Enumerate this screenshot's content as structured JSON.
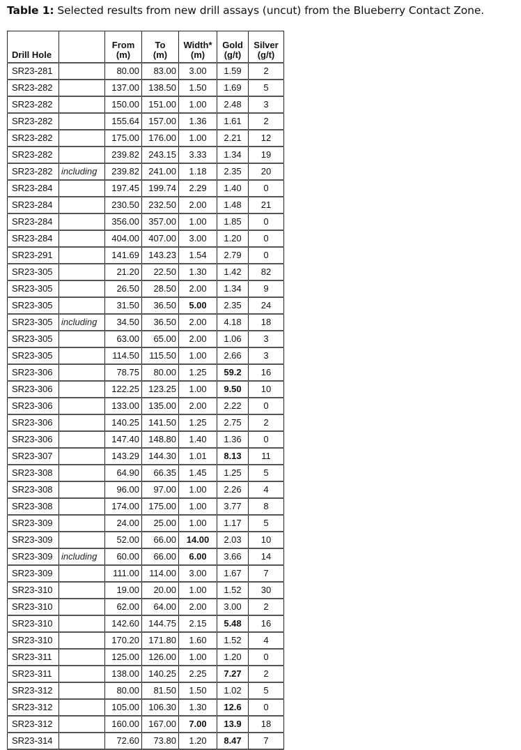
{
  "title": {
    "label": "Table 1:",
    "text": " Selected results from new drill assays (uncut) from the Blueberry Contact Zone."
  },
  "table": {
    "headers": {
      "hole": "Drill Hole",
      "inc": "",
      "from": [
        "From",
        "(m)"
      ],
      "to": [
        "To",
        "(m)"
      ],
      "width": [
        "Width*",
        "(m)"
      ],
      "gold": [
        "Gold",
        "(g/t)"
      ],
      "silver": [
        "Silver",
        "(g/t)"
      ]
    },
    "rows": [
      {
        "hole": "SR23-281",
        "inc": "",
        "from": "80.00",
        "to": "83.00",
        "width": "3.00",
        "gold": "1.59",
        "silver": "2",
        "bold": []
      },
      {
        "hole": "SR23-282",
        "inc": "",
        "from": "137.00",
        "to": "138.50",
        "width": "1.50",
        "gold": "1.69",
        "silver": "5",
        "bold": []
      },
      {
        "hole": "SR23-282",
        "inc": "",
        "from": "150.00",
        "to": "151.00",
        "width": "1.00",
        "gold": "2.48",
        "silver": "3",
        "bold": []
      },
      {
        "hole": "SR23-282",
        "inc": "",
        "from": "155.64",
        "to": "157.00",
        "width": "1.36",
        "gold": "1.61",
        "silver": "2",
        "bold": []
      },
      {
        "hole": "SR23-282",
        "inc": "",
        "from": "175.00",
        "to": "176.00",
        "width": "1.00",
        "gold": "2.21",
        "silver": "12",
        "bold": []
      },
      {
        "hole": "SR23-282",
        "inc": "",
        "from": "239.82",
        "to": "243.15",
        "width": "3.33",
        "gold": "1.34",
        "silver": "19",
        "bold": []
      },
      {
        "hole": "SR23-282",
        "inc": "including",
        "from": "239.82",
        "to": "241.00",
        "width": "1.18",
        "gold": "2.35",
        "silver": "20",
        "bold": []
      },
      {
        "hole": "SR23-284",
        "inc": "",
        "from": "197.45",
        "to": "199.74",
        "width": "2.29",
        "gold": "1.40",
        "silver": "0",
        "bold": []
      },
      {
        "hole": "SR23-284",
        "inc": "",
        "from": "230.50",
        "to": "232.50",
        "width": "2.00",
        "gold": "1.48",
        "silver": "21",
        "bold": []
      },
      {
        "hole": "SR23-284",
        "inc": "",
        "from": "356.00",
        "to": "357.00",
        "width": "1.00",
        "gold": "1.85",
        "silver": "0",
        "bold": []
      },
      {
        "hole": "SR23-284",
        "inc": "",
        "from": "404.00",
        "to": "407.00",
        "width": "3.00",
        "gold": "1.20",
        "silver": "0",
        "bold": []
      },
      {
        "hole": "SR23-291",
        "inc": "",
        "from": "141.69",
        "to": "143.23",
        "width": "1.54",
        "gold": "2.79",
        "silver": "0",
        "bold": []
      },
      {
        "hole": "SR23-305",
        "inc": "",
        "from": "21.20",
        "to": "22.50",
        "width": "1.30",
        "gold": "1.42",
        "silver": "82",
        "bold": []
      },
      {
        "hole": "SR23-305",
        "inc": "",
        "from": "26.50",
        "to": "28.50",
        "width": "2.00",
        "gold": "1.34",
        "silver": "9",
        "bold": []
      },
      {
        "hole": "SR23-305",
        "inc": "",
        "from": "31.50",
        "to": "36.50",
        "width": "5.00",
        "gold": "2.35",
        "silver": "24",
        "bold": [
          "width"
        ]
      },
      {
        "hole": "SR23-305",
        "inc": "including",
        "from": "34.50",
        "to": "36.50",
        "width": "2.00",
        "gold": "4.18",
        "silver": "18",
        "bold": []
      },
      {
        "hole": "SR23-305",
        "inc": "",
        "from": "63.00",
        "to": "65.00",
        "width": "2.00",
        "gold": "1.06",
        "silver": "3",
        "bold": []
      },
      {
        "hole": "SR23-305",
        "inc": "",
        "from": "114.50",
        "to": "115.50",
        "width": "1.00",
        "gold": "2.66",
        "silver": "3",
        "bold": []
      },
      {
        "hole": "SR23-306",
        "inc": "",
        "from": "78.75",
        "to": "80.00",
        "width": "1.25",
        "gold": "59.2",
        "silver": "16",
        "bold": [
          "gold"
        ]
      },
      {
        "hole": "SR23-306",
        "inc": "",
        "from": "122.25",
        "to": "123.25",
        "width": "1.00",
        "gold": "9.50",
        "silver": "10",
        "bold": [
          "gold"
        ]
      },
      {
        "hole": "SR23-306",
        "inc": "",
        "from": "133.00",
        "to": "135.00",
        "width": "2.00",
        "gold": "2.22",
        "silver": "0",
        "bold": []
      },
      {
        "hole": "SR23-306",
        "inc": "",
        "from": "140.25",
        "to": "141.50",
        "width": "1.25",
        "gold": "2.75",
        "silver": "2",
        "bold": []
      },
      {
        "hole": "SR23-306",
        "inc": "",
        "from": "147.40",
        "to": "148.80",
        "width": "1.40",
        "gold": "1.36",
        "silver": "0",
        "bold": []
      },
      {
        "hole": "SR23-307",
        "inc": "",
        "from": "143.29",
        "to": "144.30",
        "width": "1.01",
        "gold": "8.13",
        "silver": "11",
        "bold": [
          "gold"
        ]
      },
      {
        "hole": "SR23-308",
        "inc": "",
        "from": "64.90",
        "to": "66.35",
        "width": "1.45",
        "gold": "1.25",
        "silver": "5",
        "bold": []
      },
      {
        "hole": "SR23-308",
        "inc": "",
        "from": "96.00",
        "to": "97.00",
        "width": "1.00",
        "gold": "2.26",
        "silver": "4",
        "bold": []
      },
      {
        "hole": "SR23-308",
        "inc": "",
        "from": "174.00",
        "to": "175.00",
        "width": "1.00",
        "gold": "3.77",
        "silver": "8",
        "bold": []
      },
      {
        "hole": "SR23-309",
        "inc": "",
        "from": "24.00",
        "to": "25.00",
        "width": "1.00",
        "gold": "1.17",
        "silver": "5",
        "bold": []
      },
      {
        "hole": "SR23-309",
        "inc": "",
        "from": "52.00",
        "to": "66.00",
        "width": "14.00",
        "gold": "2.03",
        "silver": "10",
        "bold": [
          "width"
        ]
      },
      {
        "hole": "SR23-309",
        "inc": "including",
        "from": "60.00",
        "to": "66.00",
        "width": "6.00",
        "gold": "3.66",
        "silver": "14",
        "bold": [
          "width"
        ]
      },
      {
        "hole": "SR23-309",
        "inc": "",
        "from": "111.00",
        "to": "114.00",
        "width": "3.00",
        "gold": "1.67",
        "silver": "7",
        "bold": []
      },
      {
        "hole": "SR23-310",
        "inc": "",
        "from": "19.00",
        "to": "20.00",
        "width": "1.00",
        "gold": "1.52",
        "silver": "30",
        "bold": []
      },
      {
        "hole": "SR23-310",
        "inc": "",
        "from": "62.00",
        "to": "64.00",
        "width": "2.00",
        "gold": "3.00",
        "silver": "2",
        "bold": []
      },
      {
        "hole": "SR23-310",
        "inc": "",
        "from": "142.60",
        "to": "144.75",
        "width": "2.15",
        "gold": "5.48",
        "silver": "16",
        "bold": [
          "gold"
        ]
      },
      {
        "hole": "SR23-310",
        "inc": "",
        "from": "170.20",
        "to": "171.80",
        "width": "1.60",
        "gold": "1.52",
        "silver": "4",
        "bold": []
      },
      {
        "hole": "SR23-311",
        "inc": "",
        "from": "125.00",
        "to": "126.00",
        "width": "1.00",
        "gold": "1.20",
        "silver": "0",
        "bold": []
      },
      {
        "hole": "SR23-311",
        "inc": "",
        "from": "138.00",
        "to": "140.25",
        "width": "2.25",
        "gold": "7.27",
        "silver": "2",
        "bold": [
          "gold"
        ]
      },
      {
        "hole": "SR23-312",
        "inc": "",
        "from": "80.00",
        "to": "81.50",
        "width": "1.50",
        "gold": "1.02",
        "silver": "5",
        "bold": []
      },
      {
        "hole": "SR23-312",
        "inc": "",
        "from": "105.00",
        "to": "106.30",
        "width": "1.30",
        "gold": "12.6",
        "silver": "0",
        "bold": [
          "gold"
        ]
      },
      {
        "hole": "SR23-312",
        "inc": "",
        "from": "160.00",
        "to": "167.00",
        "width": "7.00",
        "gold": "13.9",
        "silver": "18",
        "bold": [
          "width",
          "gold"
        ]
      },
      {
        "hole": "SR23-314",
        "inc": "",
        "from": "72.60",
        "to": "73.80",
        "width": "1.20",
        "gold": "8.47",
        "silver": "7",
        "bold": [
          "gold"
        ]
      }
    ]
  }
}
